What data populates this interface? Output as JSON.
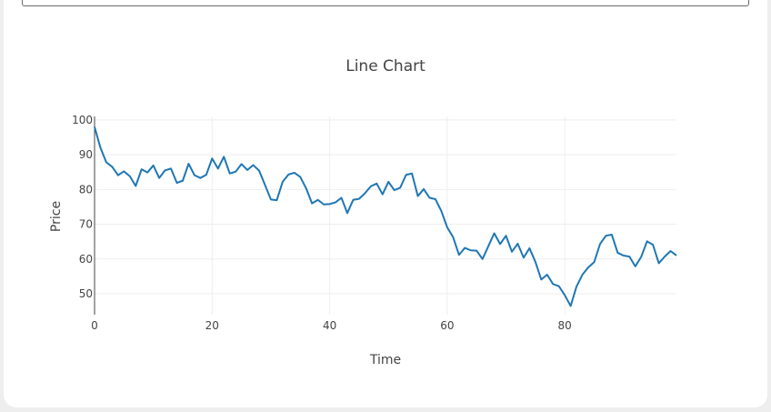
{
  "colors": {
    "line": "#1f77b4"
  },
  "chart_data": {
    "type": "line",
    "title": "Line Chart",
    "xlabel": "Time",
    "ylabel": "Price",
    "xlim": [
      0,
      99
    ],
    "ylim": [
      44,
      101
    ],
    "x_ticks": [
      0,
      20,
      40,
      60,
      80
    ],
    "y_ticks": [
      50,
      60,
      70,
      80,
      90,
      100
    ],
    "grid": true,
    "legend": "none",
    "series": [
      {
        "values": [
          98.0,
          92.0,
          87.8,
          86.5,
          84.1,
          85.2,
          83.8,
          81.0,
          85.8,
          84.9,
          86.9,
          83.3,
          85.5,
          86.0,
          81.9,
          82.5,
          87.4,
          84.1,
          83.3,
          84.2,
          88.9,
          86.0,
          89.4,
          84.6,
          85.1,
          87.3,
          85.6,
          87.0,
          85.4,
          81.3,
          77.1,
          76.9,
          82.2,
          84.3,
          84.8,
          83.6,
          80.3,
          76.0,
          77.0,
          75.7,
          75.8,
          76.3,
          77.6,
          73.2,
          77.0,
          77.3,
          78.9,
          80.9,
          81.7,
          78.6,
          82.2,
          79.8,
          80.5,
          84.2,
          84.6,
          78.1,
          80.1,
          77.6,
          77.2,
          73.8,
          69.1,
          66.3,
          61.2,
          63.2,
          62.5,
          62.4,
          60.0,
          63.7,
          67.4,
          64.3,
          66.7,
          62.1,
          64.4,
          60.4,
          63.1,
          59.2,
          54.1,
          55.5,
          52.8,
          52.2,
          49.6,
          46.5,
          52.1,
          55.5,
          57.6,
          59.1,
          64.3,
          66.7,
          67.0,
          61.8,
          61.0,
          60.7,
          57.9,
          60.6,
          65.1,
          64.1,
          58.8,
          60.7,
          62.3,
          61.0
        ]
      }
    ]
  }
}
